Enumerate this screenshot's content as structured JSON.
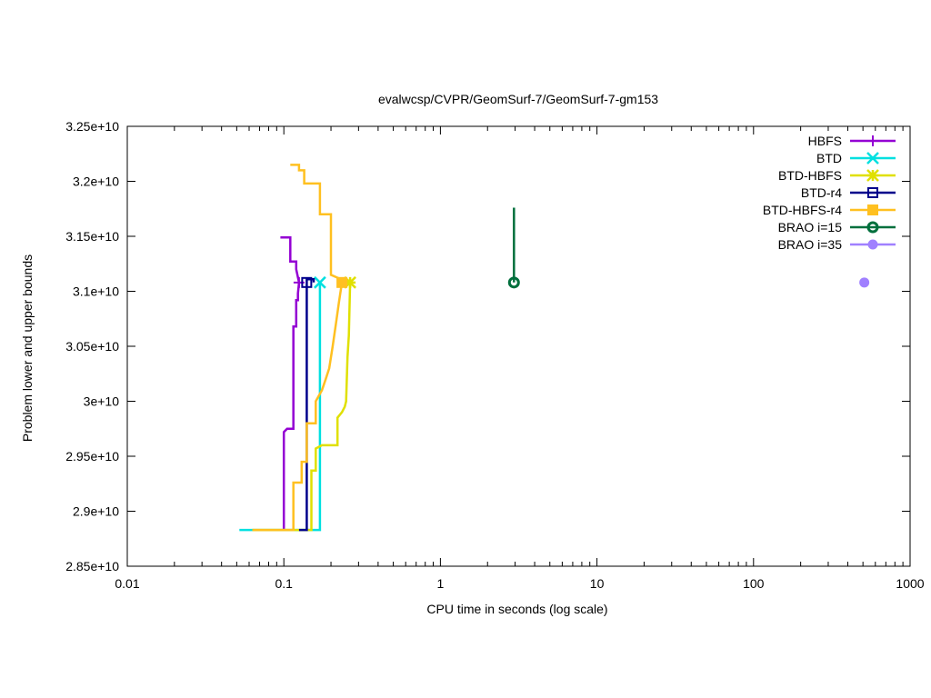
{
  "chart_data": {
    "type": "line",
    "title": "evalwcsp/CVPR/GeomSurf-7/GeomSurf-7-gm153",
    "xlabel": "CPU time in seconds (log scale)",
    "ylabel": "Problem lower and upper bounds",
    "xscale": "log",
    "xlim": [
      0.01,
      1000
    ],
    "ylim": [
      28500000000,
      32500000000
    ],
    "xticks": [
      0.01,
      0.1,
      1,
      10,
      100,
      1000
    ],
    "xtick_labels": [
      "0.01",
      "0.1",
      "1",
      "10",
      "100",
      "1000"
    ],
    "yticks": [
      28500000000,
      29000000000,
      29500000000,
      30000000000,
      30500000000,
      31000000000,
      31500000000,
      32000000000,
      32500000000
    ],
    "ytick_labels": [
      "2.85e+10",
      "2.9e+10",
      "2.95e+10",
      "3e+10",
      "3.05e+10",
      "3.1e+10",
      "3.15e+10",
      "3.2e+10",
      "3.25e+10"
    ],
    "legend_position": "top-right",
    "series": [
      {
        "name": "HBFS",
        "color": "#9400d3",
        "marker": "plus",
        "upper": [
          [
            0.095,
            31490000000
          ],
          [
            0.11,
            31490000000
          ],
          [
            0.11,
            31270000000
          ],
          [
            0.12,
            31270000000
          ],
          [
            0.12,
            31200000000
          ],
          [
            0.125,
            31080000000
          ]
        ],
        "lower": [
          [
            0.1,
            28830000000
          ],
          [
            0.1,
            29720000000
          ],
          [
            0.105,
            29750000000
          ],
          [
            0.115,
            29750000000
          ],
          [
            0.115,
            30680000000
          ],
          [
            0.12,
            30680000000
          ],
          [
            0.12,
            30920000000
          ],
          [
            0.123,
            30920000000
          ],
          [
            0.123,
            30980000000
          ],
          [
            0.125,
            31080000000
          ]
        ],
        "final": [
          0.125,
          31080000000
        ]
      },
      {
        "name": "BTD",
        "color": "#00e0e0",
        "marker": "cross",
        "upper": [],
        "lower": [
          [
            0.052,
            28830000000
          ],
          [
            0.17,
            28830000000
          ],
          [
            0.17,
            31080000000
          ]
        ],
        "final": [
          0.17,
          31080000000
        ]
      },
      {
        "name": "BTD-HBFS",
        "color": "#e0e000",
        "marker": "star",
        "upper": [],
        "lower": [
          [
            0.063,
            28830000000
          ],
          [
            0.15,
            28830000000
          ],
          [
            0.15,
            29370000000
          ],
          [
            0.16,
            29370000000
          ],
          [
            0.16,
            29570000000
          ],
          [
            0.175,
            29600000000
          ],
          [
            0.22,
            29600000000
          ],
          [
            0.22,
            29850000000
          ],
          [
            0.235,
            29900000000
          ],
          [
            0.245,
            29950000000
          ],
          [
            0.25,
            30000000000
          ],
          [
            0.255,
            30400000000
          ],
          [
            0.26,
            30600000000
          ],
          [
            0.265,
            31080000000
          ]
        ],
        "final": [
          0.265,
          31080000000
        ]
      },
      {
        "name": "BTD-r4",
        "color": "#00008b",
        "marker": "open-square",
        "upper": [],
        "lower": [
          [
            0.125,
            28830000000
          ],
          [
            0.14,
            28830000000
          ],
          [
            0.14,
            31110000000
          ],
          [
            0.155,
            31110000000
          ],
          [
            0.155,
            31080000000
          ]
        ],
        "final": [
          0.14,
          31080000000
        ]
      },
      {
        "name": "BTD-HBFS-r4",
        "color": "#ffc020",
        "marker": "filled-square",
        "upper": [
          [
            0.11,
            32150000000
          ],
          [
            0.125,
            32150000000
          ],
          [
            0.125,
            32100000000
          ],
          [
            0.135,
            32100000000
          ],
          [
            0.135,
            31980000000
          ],
          [
            0.17,
            31980000000
          ],
          [
            0.17,
            31700000000
          ],
          [
            0.2,
            31700000000
          ],
          [
            0.2,
            31150000000
          ],
          [
            0.24,
            31100000000
          ],
          [
            0.25,
            31080000000
          ]
        ],
        "lower": [
          [
            0.063,
            28830000000
          ],
          [
            0.115,
            28830000000
          ],
          [
            0.115,
            29260000000
          ],
          [
            0.13,
            29260000000
          ],
          [
            0.13,
            29450000000
          ],
          [
            0.14,
            29450000000
          ],
          [
            0.14,
            29800000000
          ],
          [
            0.16,
            29800000000
          ],
          [
            0.16,
            30000000000
          ],
          [
            0.175,
            30100000000
          ],
          [
            0.185,
            30200000000
          ],
          [
            0.195,
            30300000000
          ],
          [
            0.205,
            30500000000
          ],
          [
            0.215,
            30700000000
          ],
          [
            0.225,
            30900000000
          ],
          [
            0.235,
            31080000000
          ]
        ],
        "final": [
          0.235,
          31080000000
        ]
      },
      {
        "name": "BRAO i=15",
        "color": "#006f3c",
        "marker": "open-circle",
        "upper": [],
        "lower": [
          [
            2.95,
            31080000000
          ],
          [
            2.95,
            31760000000
          ]
        ],
        "final": [
          2.95,
          31080000000
        ]
      },
      {
        "name": "BRAO i=35",
        "color": "#a080ff",
        "marker": "filled-circle",
        "upper": [],
        "lower": [],
        "final": [
          510,
          31080000000
        ]
      }
    ]
  }
}
